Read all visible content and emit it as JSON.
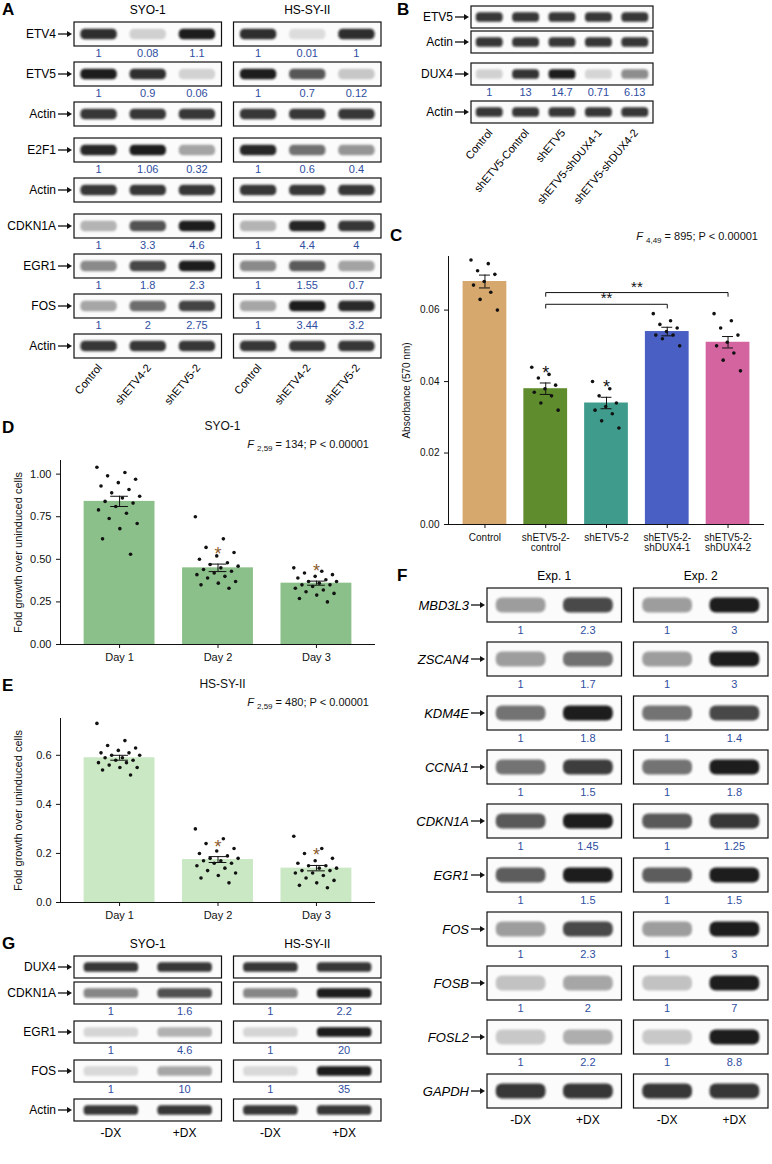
{
  "chart_data": [
    {
      "panel": "C",
      "type": "bar",
      "categories": [
        "Control",
        "shETV5-2-control",
        "shETV5-2",
        "shETV5-2-shDUX4-1",
        "shETV5-2-shDUX4-2"
      ],
      "values": [
        0.068,
        0.038,
        0.034,
        0.054,
        0.051
      ],
      "errors": [
        0.0018,
        0.0016,
        0.0016,
        0.0012,
        0.0016
      ],
      "points": [
        [
          0.074,
          0.073,
          0.071,
          0.07,
          0.068,
          0.067,
          0.065,
          0.063,
          0.06
        ],
        [
          0.044,
          0.042,
          0.041,
          0.039,
          0.038,
          0.037,
          0.036,
          0.034,
          0.032
        ],
        [
          0.04,
          0.038,
          0.036,
          0.034,
          0.033,
          0.032,
          0.031,
          0.029,
          0.027
        ],
        [
          0.059,
          0.057,
          0.056,
          0.055,
          0.054,
          0.053,
          0.053,
          0.052,
          0.05
        ],
        [
          0.059,
          0.057,
          0.055,
          0.053,
          0.051,
          0.05,
          0.048,
          0.046,
          0.043
        ]
      ],
      "colors": [
        "#d7a86e",
        "#5f8c2c",
        "#3f9c8c",
        "#4a5fc4",
        "#d3649f"
      ],
      "ylabel": "Absorbance (570 nm)",
      "ylim": [
        0,
        0.075
      ],
      "yticks": [
        {
          "value": 0,
          "label": "0.00"
        },
        {
          "value": 0.02,
          "label": "0.02"
        },
        {
          "value": 0.04,
          "label": "0.04"
        },
        {
          "value": 0.06,
          "label": "0.06"
        }
      ],
      "significance": [
        {
          "category": "shETV5-2-control",
          "label": "*",
          "color": "#111111"
        },
        {
          "category": "shETV5-2",
          "label": "*",
          "color": "#111111"
        }
      ],
      "brackets": [
        {
          "from": "shETV5-2-control",
          "to": "shETV5-2-shDUX4-1",
          "label": "**"
        },
        {
          "from": "shETV5-2-control",
          "to": "shETV5-2-shDUX4-2",
          "label": "**"
        }
      ],
      "annotation": {
        "stat": "F",
        "df": "4,49",
        "text": "= 895; P < 0.00001"
      }
    },
    {
      "panel": "D",
      "type": "bar",
      "title": "SYO-1",
      "categories": [
        "Day 1",
        "Day 2",
        "Day 3"
      ],
      "values": [
        0.84,
        0.45,
        0.36
      ],
      "errors": [
        0.03,
        0.022,
        0.012
      ],
      "points": [
        [
          1.04,
          1.01,
          0.99,
          0.97,
          0.95,
          0.93,
          0.91,
          0.89,
          0.87,
          0.86,
          0.84,
          0.83,
          0.81,
          0.79,
          0.77,
          0.74,
          0.71,
          0.68,
          0.62,
          0.53
        ],
        [
          0.75,
          0.62,
          0.57,
          0.54,
          0.52,
          0.5,
          0.48,
          0.47,
          0.46,
          0.45,
          0.44,
          0.43,
          0.42,
          0.41,
          0.4,
          0.39,
          0.37,
          0.36,
          0.35,
          0.33
        ],
        [
          0.45,
          0.43,
          0.42,
          0.41,
          0.4,
          0.39,
          0.38,
          0.37,
          0.37,
          0.36,
          0.35,
          0.35,
          0.34,
          0.33,
          0.32,
          0.31,
          0.3,
          0.29,
          0.27,
          0.25
        ]
      ],
      "color": "#8cc08a",
      "ylabel": "Fold growth over uninduced cells",
      "ylim": [
        0,
        1.08
      ],
      "yticks": [
        {
          "value": 0,
          "label": "0.00"
        },
        {
          "value": 0.25,
          "label": "0.25"
        },
        {
          "value": 0.5,
          "label": "0.50"
        },
        {
          "value": 0.75,
          "label": "0.75"
        },
        {
          "value": 1,
          "label": "1.00"
        }
      ],
      "significance": [
        {
          "category": "Day 2",
          "label": "*",
          "color": "#8b5a2b"
        },
        {
          "category": "Day 3",
          "label": "*",
          "color": "#8b5a2b"
        }
      ],
      "annotation": {
        "stat": "F",
        "df": "2,59",
        "text": "= 134; P < 0.00001"
      }
    },
    {
      "panel": "E",
      "type": "bar",
      "title": "HS-SY-II",
      "categories": [
        "Day 1",
        "Day 2",
        "Day 3"
      ],
      "values": [
        0.59,
        0.175,
        0.14
      ],
      "errors": [
        0.01,
        0.012,
        0.011
      ],
      "points": [
        [
          0.73,
          0.66,
          0.64,
          0.63,
          0.62,
          0.61,
          0.61,
          0.6,
          0.6,
          0.59,
          0.59,
          0.58,
          0.58,
          0.57,
          0.57,
          0.56,
          0.55,
          0.55,
          0.54,
          0.52
        ],
        [
          0.3,
          0.26,
          0.24,
          0.22,
          0.21,
          0.2,
          0.19,
          0.18,
          0.18,
          0.17,
          0.17,
          0.16,
          0.16,
          0.15,
          0.14,
          0.13,
          0.12,
          0.11,
          0.1,
          0.08
        ],
        [
          0.27,
          0.22,
          0.2,
          0.18,
          0.17,
          0.16,
          0.15,
          0.15,
          0.14,
          0.14,
          0.13,
          0.13,
          0.12,
          0.12,
          0.11,
          0.1,
          0.09,
          0.08,
          0.07,
          0.06
        ]
      ],
      "color": "#c9e8c3",
      "ylabel": "Fold growth over uninduced cells",
      "ylim": [
        0,
        0.75
      ],
      "yticks": [
        {
          "value": 0,
          "label": "0.0"
        },
        {
          "value": 0.2,
          "label": "0.2"
        },
        {
          "value": 0.4,
          "label": "0.4"
        },
        {
          "value": 0.6,
          "label": "0.6"
        }
      ],
      "significance": [
        {
          "category": "Day 2",
          "label": "*",
          "color": "#8b5a2b"
        },
        {
          "category": "Day 3",
          "label": "*",
          "color": "#8b5a2b"
        }
      ],
      "annotation": {
        "stat": "F",
        "df": "2,59",
        "text": "= 480; P < 0.00001"
      }
    }
  ],
  "blots": [
    {
      "panel": "A",
      "groups": [
        {
          "name": "SYO-1",
          "lanes": [
            "Control",
            "shETV4-2",
            "shETV5-2"
          ]
        },
        {
          "name": "HS-SY-II",
          "lanes": [
            "Control",
            "shETV4-2",
            "shETV5-2"
          ]
        }
      ],
      "sets": [
        [
          {
            "label": "ETV4",
            "values": [
              [
                1,
                0.08,
                1.1
              ],
              [
                1,
                0.01,
                1
              ]
            ]
          },
          {
            "label": "ETV5",
            "values": [
              [
                1,
                0.9,
                0.06
              ],
              [
                1,
                0.7,
                0.12
              ]
            ]
          },
          {
            "label": "Actin"
          }
        ],
        [
          {
            "label": "E2F1",
            "values": [
              [
                1,
                1.06,
                0.32
              ],
              [
                1,
                0.6,
                0.4
              ]
            ]
          },
          {
            "label": "Actin"
          }
        ],
        [
          {
            "label": "CDKN1A",
            "values": [
              [
                1,
                3.3,
                4.6
              ],
              [
                1,
                4.4,
                4
              ]
            ]
          },
          {
            "label": "EGR1",
            "values": [
              [
                1,
                1.8,
                2.3
              ],
              [
                1,
                1.55,
                0.7
              ]
            ]
          },
          {
            "label": "FOS",
            "values": [
              [
                1,
                2,
                2.75
              ],
              [
                1,
                3.44,
                3.2
              ]
            ]
          },
          {
            "label": "Actin"
          }
        ]
      ]
    },
    {
      "panel": "B",
      "groups": [
        {
          "lanes": [
            "Control",
            "shETV5-Control",
            "shETV5",
            "shETV5-shDUX4-1",
            "shETV5-shDUX4-2"
          ]
        }
      ],
      "sets": [
        [
          {
            "label": "ETV5"
          },
          {
            "label": "Actin"
          }
        ],
        [
          {
            "label": "DUX4",
            "values": [
              [
                1,
                13,
                14.7,
                0.71,
                6.13
              ]
            ]
          },
          {
            "label": "Actin"
          }
        ]
      ]
    },
    {
      "panel": "F",
      "label_style": "italic",
      "groups": [
        {
          "name": "Exp. 1",
          "lanes": [
            "-DX",
            "+DX"
          ]
        },
        {
          "name": "Exp. 2",
          "lanes": [
            "-DX",
            "+DX"
          ]
        }
      ],
      "sets": [
        [
          {
            "label": "MBD3L3",
            "values": [
              [
                1,
                2.3
              ],
              [
                1,
                3
              ]
            ]
          },
          {
            "label": "ZSCAN4",
            "values": [
              [
                1,
                1.7
              ],
              [
                1,
                3
              ]
            ]
          },
          {
            "label": "KDM4E",
            "values": [
              [
                1,
                1.8
              ],
              [
                1,
                1.4
              ]
            ]
          },
          {
            "label": "CCNA1",
            "values": [
              [
                1,
                1.5
              ],
              [
                1,
                1.8
              ]
            ]
          },
          {
            "label": "CDKN1A",
            "values": [
              [
                1,
                1.45
              ],
              [
                1,
                1.25
              ]
            ]
          },
          {
            "label": "EGR1",
            "values": [
              [
                1,
                1.5
              ],
              [
                1,
                1.5
              ]
            ]
          },
          {
            "label": "FOS",
            "values": [
              [
                1,
                2.3
              ],
              [
                1,
                3
              ]
            ]
          },
          {
            "label": "FOSB",
            "values": [
              [
                1,
                2
              ],
              [
                1,
                7
              ]
            ]
          },
          {
            "label": "FOSL2",
            "values": [
              [
                1,
                2.2
              ],
              [
                1,
                8.8
              ]
            ]
          },
          {
            "label": "GAPDH"
          }
        ]
      ]
    },
    {
      "panel": "G",
      "groups": [
        {
          "name": "SYO-1",
          "lanes": [
            "-DX",
            "+DX"
          ]
        },
        {
          "name": "HS-SY-II",
          "lanes": [
            "-DX",
            "+DX"
          ]
        }
      ],
      "sets": [
        [
          {
            "label": "DUX4"
          },
          {
            "label": "CDKN1A",
            "values": [
              [
                1,
                1.6
              ],
              [
                1,
                2.2
              ]
            ]
          },
          {
            "label": "EGR1",
            "values": [
              [
                1,
                4.6
              ],
              [
                1,
                20
              ]
            ]
          },
          {
            "label": "FOS",
            "values": [
              [
                1,
                10
              ],
              [
                1,
                35
              ]
            ]
          },
          {
            "label": "Actin"
          }
        ]
      ]
    }
  ]
}
